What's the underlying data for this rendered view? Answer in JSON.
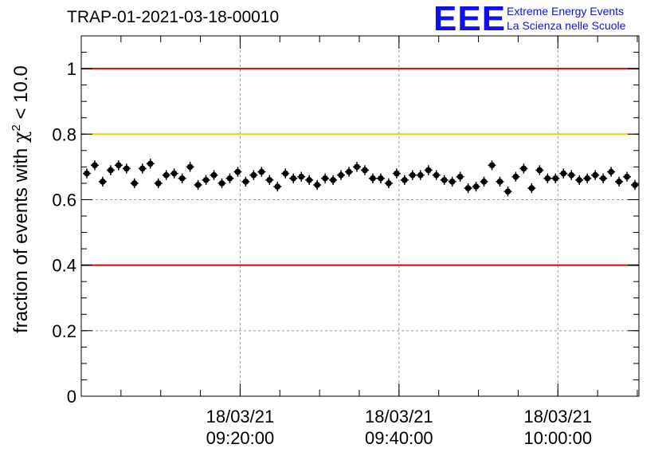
{
  "chart_data": {
    "type": "scatter",
    "title": "TRAP-01-2021-03-18-00010",
    "ylabel_prefix": "fraction of events with ",
    "ylabel_symbol": "χ",
    "ylabel_sup": "2",
    "ylabel_suffix": " < 10.0",
    "xlabel": "",
    "ylim": [
      0,
      1.1
    ],
    "yticks": [
      "0",
      "0.2",
      "0.4",
      "0.6",
      "0.8",
      "1"
    ],
    "xticks": [
      {
        "date": "18/03/21",
        "time": "09:20:00",
        "minutes": 20
      },
      {
        "date": "18/03/21",
        "time": "09:40:00",
        "minutes": 40
      },
      {
        "date": "18/03/21",
        "time": "10:00:00",
        "minutes": 60
      }
    ],
    "x_range_minutes": [
      0,
      70.2
    ],
    "grid": true,
    "reference_lines": [
      {
        "y": 1.0,
        "color": "#e00000"
      },
      {
        "y": 0.8,
        "color": "#ffcc00"
      },
      {
        "y": 0.4,
        "color": "#e00000"
      }
    ],
    "x_minutes": [
      0.7,
      1.7,
      2.7,
      3.7,
      4.7,
      5.7,
      6.7,
      7.7,
      8.7,
      9.7,
      10.7,
      11.7,
      12.7,
      13.7,
      14.7,
      15.7,
      16.7,
      17.7,
      18.7,
      19.7,
      20.7,
      21.7,
      22.7,
      23.7,
      24.7,
      25.7,
      26.7,
      27.7,
      28.7,
      29.7,
      30.7,
      31.7,
      32.7,
      33.7,
      34.7,
      35.7,
      36.7,
      37.7,
      38.7,
      39.7,
      40.7,
      41.7,
      42.7,
      43.7,
      44.7,
      45.7,
      46.7,
      47.7,
      48.7,
      49.7,
      50.7,
      51.7,
      52.7,
      53.7,
      54.7,
      55.7,
      56.7,
      57.7,
      58.7,
      59.7,
      60.7,
      61.7,
      62.7,
      63.7,
      64.7,
      65.7,
      66.7,
      67.7,
      68.7,
      69.7
    ],
    "y": [
      0.68,
      0.705,
      0.655,
      0.69,
      0.705,
      0.695,
      0.65,
      0.695,
      0.71,
      0.65,
      0.675,
      0.68,
      0.665,
      0.7,
      0.645,
      0.66,
      0.675,
      0.65,
      0.665,
      0.685,
      0.655,
      0.675,
      0.685,
      0.66,
      0.64,
      0.68,
      0.665,
      0.67,
      0.66,
      0.645,
      0.665,
      0.66,
      0.675,
      0.685,
      0.7,
      0.69,
      0.665,
      0.665,
      0.65,
      0.68,
      0.66,
      0.675,
      0.675,
      0.69,
      0.675,
      0.66,
      0.655,
      0.67,
      0.635,
      0.64,
      0.655,
      0.705,
      0.655,
      0.625,
      0.67,
      0.695,
      0.635,
      0.69,
      0.665,
      0.665,
      0.68,
      0.675,
      0.66,
      0.665,
      0.675,
      0.665,
      0.685,
      0.655,
      0.67,
      0.645
    ],
    "y_error": 0.015,
    "marker_color": "#000000"
  },
  "logo": {
    "mark": "EEE",
    "line1": "Extreme Energy Events",
    "line2": "La Scienza nelle Scuole"
  }
}
